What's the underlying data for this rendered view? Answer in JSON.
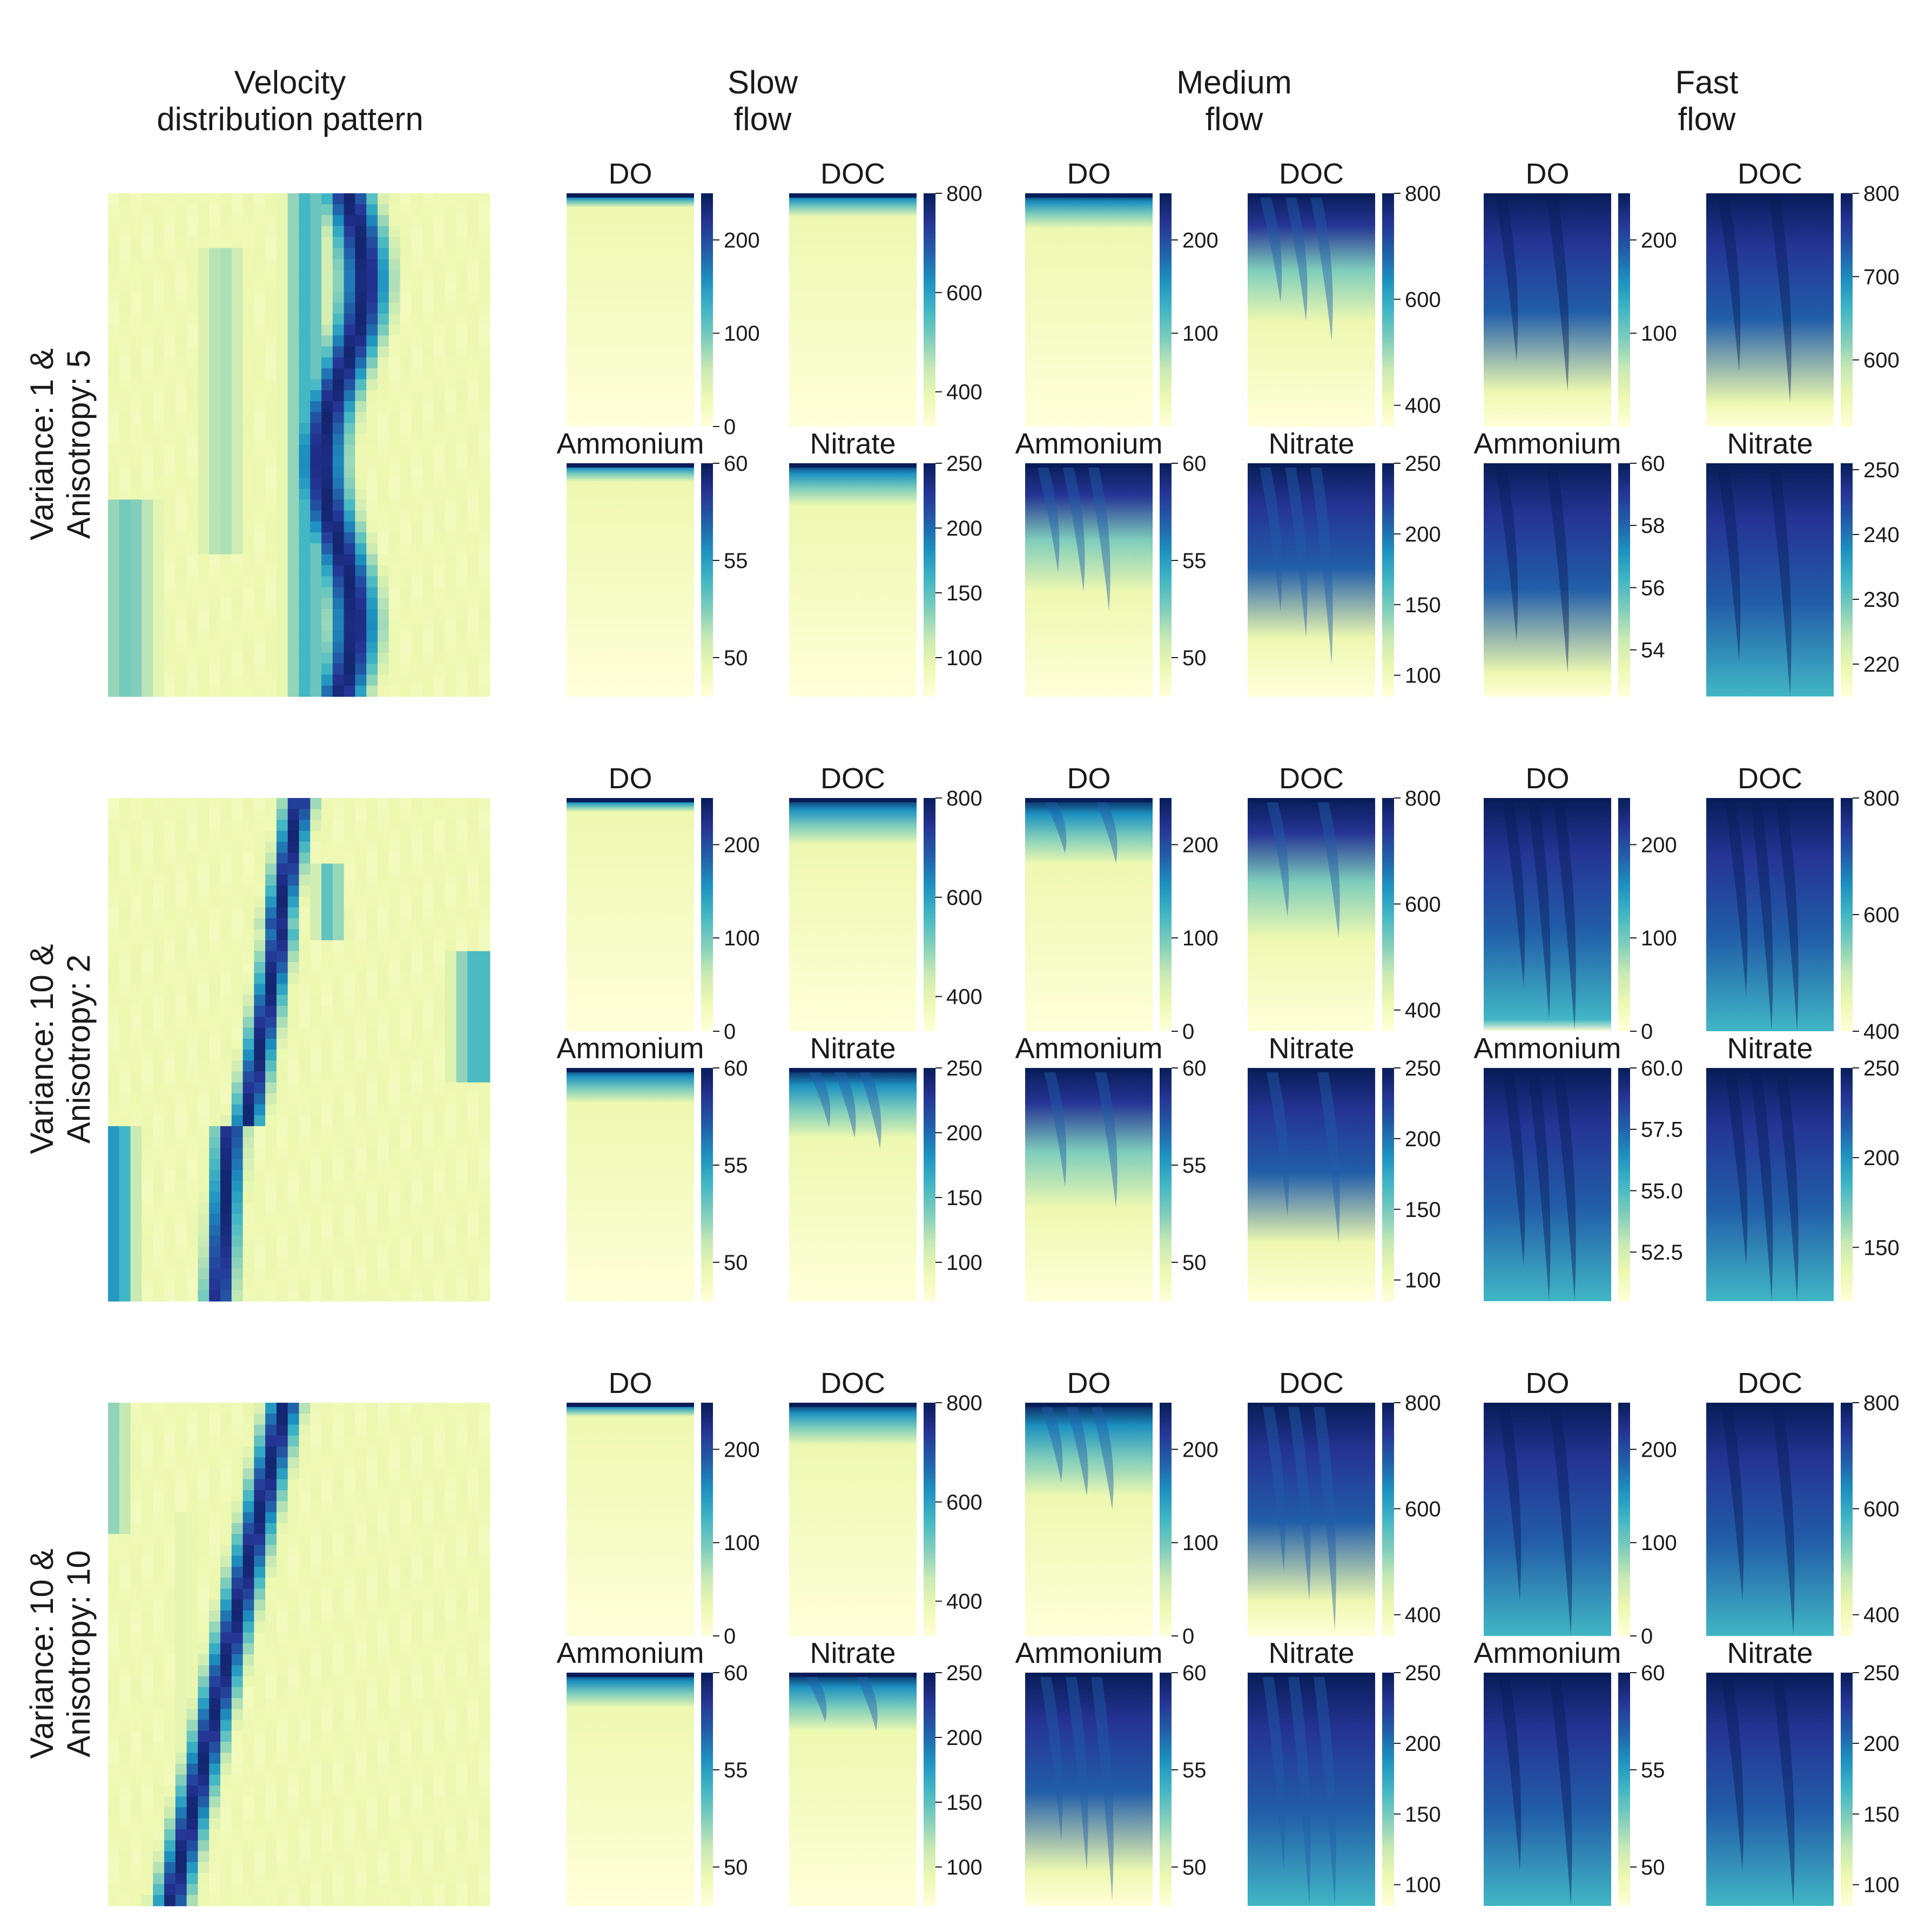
{
  "column_headers": [
    {
      "line1": "Velocity",
      "line2": "distribution pattern"
    },
    {
      "line1": "Slow",
      "line2": "flow"
    },
    {
      "line1": "Medium",
      "line2": "flow"
    },
    {
      "line1": "Fast",
      "line2": "flow"
    }
  ],
  "row_labels": [
    {
      "line1": "Variance: 1 &",
      "line2": "Anisotropy: 5"
    },
    {
      "line1": "Variance: 10 &",
      "line2": "Anisotropy: 2"
    },
    {
      "line1": "Variance: 10 &",
      "line2": "Anisotropy: 10"
    }
  ],
  "panel_titles": [
    "DO",
    "DOC",
    "Ammonium",
    "Nitrate"
  ],
  "flow_regimes": [
    "Slow",
    "Medium",
    "Fast"
  ],
  "colormap": {
    "name": "YlGnBu",
    "stops": [
      "#ffffd9",
      "#edf8b1",
      "#c7e9b4",
      "#7fcdbb",
      "#41b6c4",
      "#1d91c0",
      "#225ea8",
      "#253494",
      "#081d58"
    ]
  },
  "chart_data": {
    "type": "heatmap",
    "description_source": "grid of 3 velocity-field rows x (1 velocity map + 3 flow regimes x 4 species) heatmaps with colorbars",
    "rows": [
      {
        "row_label": "Variance: 1 & Anisotropy: 5",
        "panels": {
          "Slow": {
            "DO": {
              "ticks": [
                "0",
                "100",
                "200"
              ],
              "range": [
                0,
                250
              ],
              "penetration": 0.03
            },
            "DOC": {
              "ticks": [
                "400",
                "600",
                "800"
              ],
              "range": [
                330,
                800
              ],
              "penetration": 0.1
            },
            "Ammonium": {
              "ticks": [
                "50",
                "55",
                "60"
              ],
              "range": [
                48,
                60
              ],
              "penetration": 0.08
            },
            "Nitrate": {
              "ticks": [
                "100",
                "150",
                "200",
                "250"
              ],
              "range": [
                70,
                250
              ],
              "penetration": 0.18
            }
          },
          "Medium": {
            "DO": {
              "ticks": [
                "100",
                "200"
              ],
              "range": [
                0,
                250
              ],
              "penetration": 0.15
            },
            "DOC": {
              "ticks": [
                "400",
                "600",
                "800"
              ],
              "range": [
                360,
                800
              ],
              "penetration": 0.55
            },
            "Ammonium": {
              "ticks": [
                "50",
                "55",
                "60"
              ],
              "range": [
                48,
                60
              ],
              "penetration": 0.55
            },
            "Nitrate": {
              "ticks": [
                "100",
                "150",
                "200",
                "250"
              ],
              "range": [
                85,
                250
              ],
              "penetration": 0.75
            }
          },
          "Fast": {
            "DO": {
              "ticks": [
                "100",
                "200"
              ],
              "range": [
                0,
                250
              ],
              "penetration": 0.85
            },
            "DOC": {
              "ticks": [
                "600",
                "700",
                "800"
              ],
              "range": [
                520,
                800
              ],
              "penetration": 0.9
            },
            "Ammonium": {
              "ticks": [
                "54",
                "56",
                "58",
                "60"
              ],
              "range": [
                52.5,
                60
              ],
              "penetration": 0.9
            },
            "Nitrate": {
              "ticks": [
                "220",
                "230",
                "240",
                "250"
              ],
              "range": [
                215,
                251
              ],
              "penetration": 1.0
            }
          }
        }
      },
      {
        "row_label": "Variance: 10 & Anisotropy: 2",
        "panels": {
          "Slow": {
            "DO": {
              "ticks": [
                "0",
                "100",
                "200"
              ],
              "range": [
                0,
                250
              ],
              "penetration": 0.05
            },
            "DOC": {
              "ticks": [
                "400",
                "600",
                "800"
              ],
              "range": [
                330,
                800
              ],
              "penetration": 0.2
            },
            "Ammonium": {
              "ticks": [
                "50",
                "55",
                "60"
              ],
              "range": [
                48,
                60
              ],
              "penetration": 0.15
            },
            "Nitrate": {
              "ticks": [
                "100",
                "150",
                "200",
                "250"
              ],
              "range": [
                70,
                250
              ],
              "penetration": 0.3
            }
          },
          "Medium": {
            "DO": {
              "ticks": [
                "0",
                "100",
                "200"
              ],
              "range": [
                0,
                250
              ],
              "penetration": 0.28
            },
            "DOC": {
              "ticks": [
                "400",
                "600",
                "800"
              ],
              "range": [
                360,
                800
              ],
              "penetration": 0.6
            },
            "Ammonium": {
              "ticks": [
                "50",
                "55",
                "60"
              ],
              "range": [
                48,
                60
              ],
              "penetration": 0.6
            },
            "Nitrate": {
              "ticks": [
                "100",
                "150",
                "200",
                "250"
              ],
              "range": [
                85,
                250
              ],
              "penetration": 0.75
            }
          },
          "Fast": {
            "DO": {
              "ticks": [
                "0",
                "100",
                "200"
              ],
              "range": [
                0,
                250
              ],
              "penetration": 0.95
            },
            "DOC": {
              "ticks": [
                "400",
                "600",
                "800"
              ],
              "range": [
                400,
                800
              ],
              "penetration": 1.0
            },
            "Ammonium": {
              "ticks": [
                "52.5",
                "55.0",
                "57.5",
                "60.0"
              ],
              "range": [
                50.5,
                60
              ],
              "penetration": 1.0
            },
            "Nitrate": {
              "ticks": [
                "150",
                "200",
                "250"
              ],
              "range": [
                120,
                250
              ],
              "penetration": 1.0
            }
          }
        }
      },
      {
        "row_label": "Variance: 10 & Anisotropy: 10",
        "panels": {
          "Slow": {
            "DO": {
              "ticks": [
                "0",
                "100",
                "200"
              ],
              "range": [
                0,
                250
              ],
              "penetration": 0.05
            },
            "DOC": {
              "ticks": [
                "400",
                "600",
                "800"
              ],
              "range": [
                330,
                800
              ],
              "penetration": 0.18
            },
            "Ammonium": {
              "ticks": [
                "50",
                "55",
                "60"
              ],
              "range": [
                48,
                60
              ],
              "penetration": 0.15
            },
            "Nitrate": {
              "ticks": [
                "100",
                "150",
                "200",
                "250"
              ],
              "range": [
                70,
                250
              ],
              "penetration": 0.25
            }
          },
          "Medium": {
            "DO": {
              "ticks": [
                "0",
                "100",
                "200"
              ],
              "range": [
                0,
                250
              ],
              "penetration": 0.4
            },
            "DOC": {
              "ticks": [
                "400",
                "600",
                "800"
              ],
              "range": [
                360,
                800
              ],
              "penetration": 0.85
            },
            "Ammonium": {
              "ticks": [
                "50",
                "55",
                "60"
              ],
              "range": [
                48,
                60
              ],
              "penetration": 0.85
            },
            "Nitrate": {
              "ticks": [
                "100",
                "150",
                "200",
                "250"
              ],
              "range": [
                85,
                250
              ],
              "penetration": 1.0
            }
          },
          "Fast": {
            "DO": {
              "ticks": [
                "0",
                "100",
                "200"
              ],
              "range": [
                0,
                250
              ],
              "penetration": 1.0
            },
            "DOC": {
              "ticks": [
                "400",
                "600",
                "800"
              ],
              "range": [
                360,
                800
              ],
              "penetration": 1.0
            },
            "Ammonium": {
              "ticks": [
                "50",
                "55",
                "60"
              ],
              "range": [
                48,
                60
              ],
              "penetration": 1.0
            },
            "Nitrate": {
              "ticks": [
                "100",
                "150",
                "200",
                "250"
              ],
              "range": [
                85,
                250
              ],
              "penetration": 1.0
            }
          }
        }
      }
    ]
  }
}
